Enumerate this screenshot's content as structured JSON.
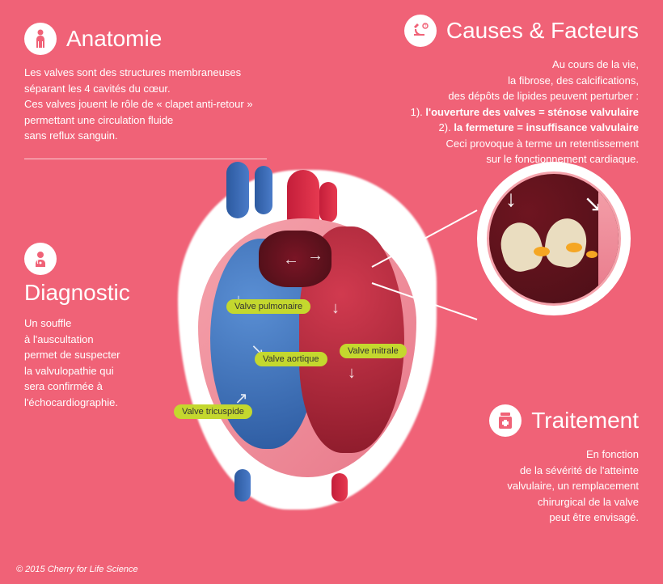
{
  "colors": {
    "bg": "#f06277",
    "pill": "#c4d82e",
    "blue": "#2c5aa0",
    "red": "#c41e3a",
    "wall": "#f5a3ac",
    "lipid": "#f5a623"
  },
  "anatomie": {
    "title": "Anatomie",
    "body": "Les valves sont des structures membraneuses séparant les 4 cavités du cœur.\nCes valves jouent le rôle de « clapet anti-retour » permettant une circulation fluide\nsans reflux sanguin."
  },
  "causes": {
    "title": "Causes & Facteurs",
    "intro": "Au cours de la vie,\nla fibrose, des calcifications,\ndes dépôts de lipides peuvent perturber :",
    "point1_prefix": "1). ",
    "point1_bold": "l'ouverture des valves = sténose valvulaire",
    "point2_prefix": "2). ",
    "point2_bold": "la fermeture = insuffisance valvulaire",
    "outro": "Ceci provoque à terme un retentissement\nsur le fonctionnement cardiaque."
  },
  "diagnostic": {
    "title": "Diagnostic",
    "body": "Un souffle\nà l'auscultation\npermet de suspecter\nla valvulopathie qui\nsera confirmée à\nl'échocardiographie."
  },
  "traitement": {
    "title": "Traitement",
    "body": "En fonction\nde la sévérité de l'atteinte\nvalvulaire, un remplacement\nchirurgical de la valve\npeut être envisagé."
  },
  "labels": {
    "pulmonaire": "Valve pulmonaire",
    "aortique": "Valve aortique",
    "mitrale": "Valve mitrale",
    "tricuspide": "Valve tricuspide"
  },
  "copyright": "© 2015 Cherry for Life Science"
}
